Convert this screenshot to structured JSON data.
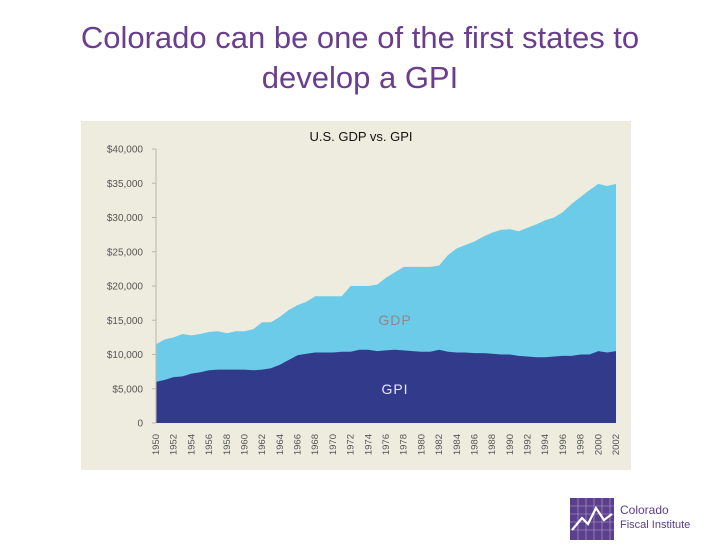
{
  "slide": {
    "title_line1": "Colorado can be one of the first states to",
    "title_line2": "develop a GPI"
  },
  "colors": {
    "title": "#6a3d8f",
    "gdp_fill": "#6ccbe8",
    "gpi_fill": "#323a8c",
    "panel_bg": "#eeecdf",
    "area_label": "#8a8a8a",
    "tick_text": "#555555"
  },
  "chart_data": {
    "type": "area",
    "title": "U.S. GDP vs. GPI",
    "xlabel": "",
    "ylabel": "",
    "ylim": [
      0,
      40000
    ],
    "y_ticks": [
      "0",
      "$5,000",
      "$10,000",
      "$15,000",
      "$20,000",
      "$25,000",
      "$30,000",
      "$35,000",
      "$40,000"
    ],
    "y_tick_values": [
      0,
      5000,
      10000,
      15000,
      20000,
      25000,
      30000,
      35000,
      40000
    ],
    "x_ticks": [
      "1950",
      "1952",
      "1954",
      "1956",
      "1958",
      "1960",
      "1962",
      "1964",
      "1966",
      "1968",
      "1970",
      "1972",
      "1974",
      "1976",
      "1978",
      "1980",
      "1982",
      "1984",
      "1986",
      "1988",
      "1990",
      "1992",
      "1994",
      "1996",
      "1998",
      "2000",
      "2002"
    ],
    "x": [
      1950,
      1951,
      1952,
      1953,
      1954,
      1955,
      1956,
      1957,
      1958,
      1959,
      1960,
      1961,
      1962,
      1963,
      1964,
      1965,
      1966,
      1967,
      1968,
      1969,
      1970,
      1971,
      1972,
      1973,
      1974,
      1975,
      1976,
      1977,
      1978,
      1979,
      1980,
      1981,
      1982,
      1983,
      1984,
      1985,
      1986,
      1987,
      1988,
      1989,
      1990,
      1991,
      1992,
      1993,
      1994,
      1995,
      1996,
      1997,
      1998,
      1999,
      2000,
      2001,
      2002
    ],
    "series": [
      {
        "name": "GDP",
        "values": [
          11500,
          12200,
          12500,
          13000,
          12800,
          13000,
          13300,
          13400,
          13100,
          13400,
          13400,
          13700,
          14700,
          14700,
          15500,
          16500,
          17200,
          17700,
          18500,
          18500,
          18500,
          18500,
          20000,
          20000,
          20000,
          20200,
          21200,
          22000,
          22800,
          22800,
          22800,
          22800,
          23000,
          24500,
          25500,
          26000,
          26500,
          27200,
          27800,
          28200,
          28300,
          28000,
          28500,
          29000,
          29600,
          30000,
          30800,
          32000,
          33000,
          34000,
          34900,
          34600,
          34900
        ]
      },
      {
        "name": "GPI",
        "values": [
          6000,
          6300,
          6700,
          6800,
          7200,
          7400,
          7700,
          7800,
          7800,
          7800,
          7800,
          7700,
          7800,
          8000,
          8500,
          9200,
          9900,
          10100,
          10300,
          10300,
          10300,
          10400,
          10400,
          10700,
          10700,
          10500,
          10600,
          10700,
          10600,
          10500,
          10400,
          10400,
          10700,
          10400,
          10300,
          10300,
          10200,
          10200,
          10100,
          10000,
          10000,
          9800,
          9700,
          9600,
          9600,
          9700,
          9800,
          9800,
          10000,
          10000,
          10500,
          10300,
          10500
        ]
      }
    ],
    "area_labels": [
      "GDP",
      "GPI"
    ],
    "grid": false,
    "legend": "none"
  },
  "logo": {
    "line1": "Colorado",
    "line2": "Fiscal Institute"
  }
}
